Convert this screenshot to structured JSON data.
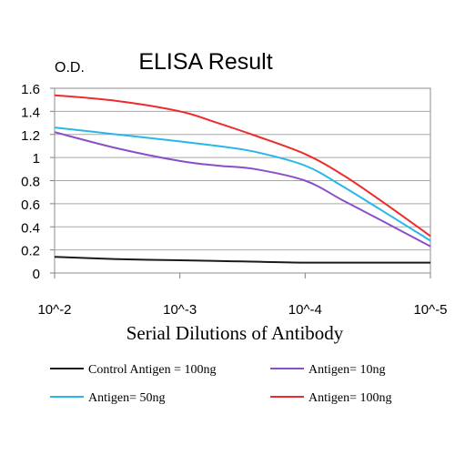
{
  "chart_data": {
    "type": "line",
    "title": "ELISA Result",
    "ylabel": "O.D.",
    "xlabel": "Serial Dilutions of Antibody",
    "x_tick_labels": [
      "10^-2",
      "10^-3",
      "10^-4",
      "10^-5"
    ],
    "y_tick_labels": [
      "0",
      "0.2",
      "0.4",
      "0.6",
      "0.8",
      "1",
      "1.2",
      "1.4",
      "1.6"
    ],
    "ylim": [
      0,
      1.6
    ],
    "x_scale": "log",
    "x_decades": [
      -2,
      -3,
      -4,
      -5
    ],
    "grid": "horizontal",
    "legend_position": "bottom",
    "series": [
      {
        "name": "Control Antigen = 100ng",
        "color": "#1a1a1a",
        "x": [
          -2,
          -2.5,
          -3,
          -3.5,
          -4,
          -4.5,
          -5
        ],
        "y": [
          0.14,
          0.12,
          0.11,
          0.1,
          0.09,
          0.09,
          0.09
        ]
      },
      {
        "name": "Antigen= 10ng",
        "color": "#8a4fc8",
        "x": [
          -2,
          -2.5,
          -3,
          -3.3,
          -3.6,
          -4,
          -4.3,
          -4.6,
          -5
        ],
        "y": [
          1.22,
          1.08,
          0.97,
          0.93,
          0.9,
          0.8,
          0.63,
          0.46,
          0.23
        ]
      },
      {
        "name": "Antigen= 50ng",
        "color": "#29b6e8",
        "x": [
          -2,
          -2.5,
          -3,
          -3.3,
          -3.6,
          -4,
          -4.3,
          -4.6,
          -5
        ],
        "y": [
          1.26,
          1.2,
          1.14,
          1.1,
          1.05,
          0.93,
          0.75,
          0.55,
          0.28
        ]
      },
      {
        "name": "Antigen= 100ng",
        "color": "#ee2b2b",
        "x": [
          -2,
          -2.5,
          -3,
          -3.3,
          -3.6,
          -4,
          -4.3,
          -4.6,
          -5
        ],
        "y": [
          1.54,
          1.49,
          1.4,
          1.3,
          1.19,
          1.03,
          0.85,
          0.63,
          0.32
        ]
      }
    ]
  }
}
